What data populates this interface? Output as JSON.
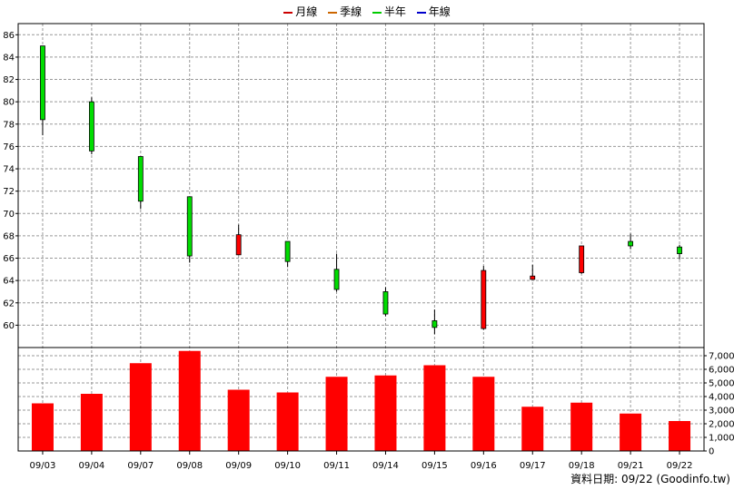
{
  "legend": [
    {
      "label": "月線",
      "color": "#cc0000"
    },
    {
      "label": "季線",
      "color": "#cc6600"
    },
    {
      "label": "半年",
      "color": "#00cc00"
    },
    {
      "label": "年線",
      "color": "#0000cc"
    }
  ],
  "footer": "資料日期: 09/22  (Goodinfo.tw)",
  "colors": {
    "up": "#ff0000",
    "down": "#00dd00",
    "volume": "#ff0000",
    "grid": "#999999"
  },
  "chart_data": [
    {
      "type": "candlestick",
      "categories": [
        "09/03",
        "09/04",
        "09/07",
        "09/08",
        "09/09",
        "09/10",
        "09/11",
        "09/14",
        "09/15",
        "09/16",
        "09/17",
        "09/18",
        "09/21",
        "09/22"
      ],
      "ohlc": [
        {
          "open": 85.0,
          "high": 85.0,
          "low": 77.0,
          "close": 78.4
        },
        {
          "open": 80.0,
          "high": 80.4,
          "low": 75.3,
          "close": 75.6
        },
        {
          "open": 75.1,
          "high": 75.1,
          "low": 70.4,
          "close": 71.1
        },
        {
          "open": 71.5,
          "high": 71.5,
          "low": 65.6,
          "close": 66.2
        },
        {
          "open": 66.3,
          "high": 69.0,
          "low": 66.3,
          "close": 68.1
        },
        {
          "open": 67.5,
          "high": 67.5,
          "low": 65.2,
          "close": 65.7
        },
        {
          "open": 65.0,
          "high": 66.4,
          "low": 63.0,
          "close": 63.2
        },
        {
          "open": 63.0,
          "high": 63.4,
          "low": 60.8,
          "close": 61.0
        },
        {
          "open": 60.4,
          "high": 61.4,
          "low": 59.2,
          "close": 59.8
        },
        {
          "open": 59.7,
          "high": 65.3,
          "low": 59.6,
          "close": 64.9
        },
        {
          "open": 64.1,
          "high": 65.4,
          "low": 64.1,
          "close": 64.4
        },
        {
          "open": 64.7,
          "high": 67.1,
          "low": 64.6,
          "close": 67.1
        },
        {
          "open": 67.5,
          "high": 68.2,
          "low": 66.8,
          "close": 67.1
        },
        {
          "open": 67.0,
          "high": 67.2,
          "low": 65.9,
          "close": 66.4
        }
      ],
      "yticks": [
        60,
        62,
        64,
        66,
        68,
        70,
        72,
        74,
        76,
        78,
        80,
        82,
        84,
        86
      ],
      "ylim": [
        58,
        87
      ]
    },
    {
      "type": "bar",
      "categories": [
        "09/03",
        "09/04",
        "09/07",
        "09/08",
        "09/09",
        "09/10",
        "09/11",
        "09/14",
        "09/15",
        "09/16",
        "09/17",
        "09/18",
        "09/21",
        "09/22"
      ],
      "values": [
        3500,
        4200,
        6450,
        7350,
        4500,
        4300,
        5450,
        5550,
        6300,
        5450,
        3250,
        3550,
        2750,
        2200
      ],
      "yticks": [
        0,
        1000,
        2000,
        3000,
        4000,
        5000,
        6000,
        7000
      ],
      "ytick_labels": [
        "0",
        "1,000",
        "2,000",
        "3,000",
        "4,000",
        "5,000",
        "6,000",
        "7,000"
      ],
      "ylim": [
        0,
        7800
      ]
    }
  ]
}
